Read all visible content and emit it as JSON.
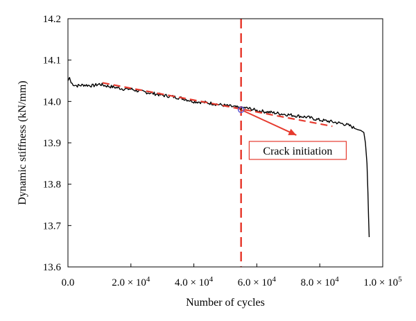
{
  "chart_data": {
    "type": "line",
    "title": "",
    "xlabel": "Number of cycles",
    "ylabel": "Dynamic stiffness (kN/mm)",
    "xlim": [
      0,
      100000
    ],
    "ylim": [
      13.6,
      14.2
    ],
    "x_ticks": [
      0,
      20000,
      40000,
      60000,
      80000,
      100000
    ],
    "x_tick_labels": [
      {
        "mant": "0.0",
        "exp": ""
      },
      {
        "mant": "2.0 × 10",
        "exp": "4"
      },
      {
        "mant": "4.0 × 10",
        "exp": "4"
      },
      {
        "mant": "6.0 × 10",
        "exp": "4"
      },
      {
        "mant": "8.0 × 10",
        "exp": "4"
      },
      {
        "mant": "1.0 × 10",
        "exp": "5"
      }
    ],
    "y_ticks": [
      13.6,
      13.7,
      13.8,
      13.9,
      14.0,
      14.1,
      14.2
    ],
    "y_tick_labels": [
      "13.6",
      "13.7",
      "13.8",
      "13.9",
      "14.0",
      "14.1",
      "14.2"
    ],
    "grid": false,
    "series": [
      {
        "color": "#000000",
        "x": [
          0,
          500,
          1000,
          2000,
          3000,
          5000,
          8000,
          10000,
          12000,
          15000,
          18000,
          20000,
          22000,
          25000,
          28000,
          30000,
          33000,
          36000,
          40000,
          43000,
          46000,
          50000,
          52000,
          54000,
          55000,
          56000,
          58000,
          60000,
          63000,
          66000,
          70000,
          73000,
          76000,
          80000,
          83000,
          86000,
          88000,
          90000,
          91000,
          92000,
          93000,
          94000,
          94500,
          95000,
          95300,
          95500,
          95700
        ],
        "y": [
          14.05,
          14.058,
          14.045,
          14.04,
          14.038,
          14.04,
          14.038,
          14.042,
          14.038,
          14.034,
          14.03,
          14.03,
          14.026,
          14.022,
          14.018,
          14.015,
          14.012,
          14.008,
          14.0,
          13.998,
          13.995,
          13.99,
          13.988,
          13.985,
          13.982,
          13.985,
          13.982,
          13.978,
          13.975,
          13.972,
          13.968,
          13.965,
          13.962,
          13.955,
          13.952,
          13.948,
          13.945,
          13.94,
          13.935,
          13.932,
          13.93,
          13.925,
          13.9,
          13.85,
          13.78,
          13.72,
          13.672
        ]
      },
      {
        "color": "#e63a2e",
        "dashed": true,
        "x": [
          11000,
          84000
        ],
        "y": [
          14.045,
          13.94
        ]
      }
    ],
    "reference_line": {
      "x": 55000,
      "color": "#e63a2e"
    },
    "annotation": {
      "text": "Crack initiation",
      "point": {
        "x": 55000,
        "y": 13.98
      },
      "label_position": {
        "x": 73000,
        "y": 13.88
      },
      "marker_color": "#5b5bd6",
      "arrow_color": "#e63a2e",
      "box_border_color": "#e63a2e"
    }
  }
}
